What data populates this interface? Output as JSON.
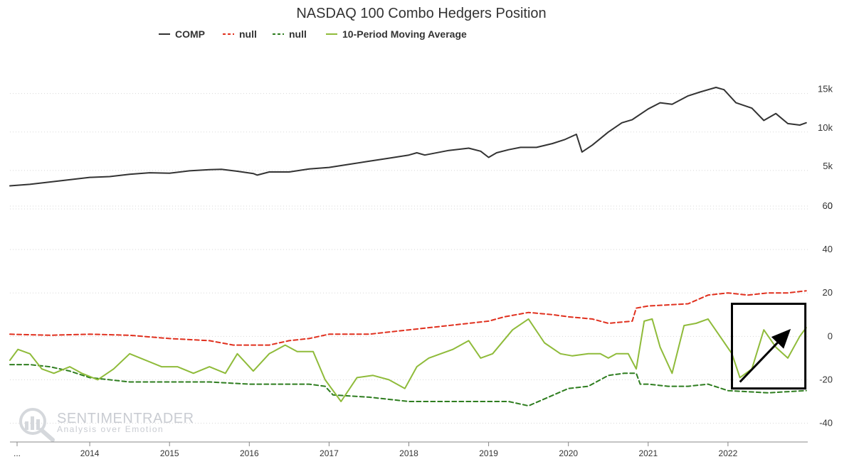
{
  "chart_data": {
    "type": "line",
    "title": "NASDAQ 100 Combo Hedgers Position",
    "legend": {
      "placement": "top-center",
      "items": [
        {
          "label": "COMP",
          "color": "#333333",
          "dash": "solid"
        },
        {
          "label": "null",
          "color": "#e0301e",
          "dash": "dashed"
        },
        {
          "label": "null",
          "color": "#2e7d1f",
          "dash": "dashed"
        },
        {
          "label": "10-Period Moving Average",
          "color": "#8fbb3a",
          "dash": "solid"
        }
      ]
    },
    "x_axis": {
      "min": 2013.0,
      "max": 2023.0,
      "first_label": "...",
      "tick_labels": [
        "2014",
        "2015",
        "2016",
        "2017",
        "2018",
        "2019",
        "2020",
        "2021",
        "2022"
      ],
      "tick_values": [
        2014,
        2015,
        2016,
        2017,
        2018,
        2019,
        2020,
        2021,
        2022
      ]
    },
    "upper_panel": {
      "ylim": [
        0,
        17000
      ],
      "tick_values": [
        0,
        5000,
        10000,
        15000
      ],
      "tick_labels": [
        "0",
        "5k",
        "10k",
        "15k"
      ],
      "series": [
        {
          "name": "COMP",
          "color": "#333333",
          "x": [
            2013.0,
            2013.25,
            2013.5,
            2013.75,
            2014.0,
            2014.25,
            2014.5,
            2014.75,
            2015.0,
            2015.25,
            2015.5,
            2015.65,
            2015.85,
            2016.05,
            2016.1,
            2016.25,
            2016.5,
            2016.75,
            2017.0,
            2017.25,
            2017.5,
            2017.75,
            2018.0,
            2018.1,
            2018.2,
            2018.5,
            2018.75,
            2018.9,
            2019.0,
            2019.1,
            2019.25,
            2019.4,
            2019.6,
            2019.8,
            2019.95,
            2020.1,
            2020.17,
            2020.3,
            2020.5,
            2020.67,
            2020.8,
            2021.0,
            2021.15,
            2021.3,
            2021.5,
            2021.65,
            2021.85,
            2021.95,
            2022.1,
            2022.3,
            2022.45,
            2022.6,
            2022.75,
            2022.9,
            2022.98
          ],
          "values": [
            3000,
            3200,
            3500,
            3800,
            4100,
            4200,
            4500,
            4700,
            4650,
            4950,
            5100,
            5150,
            4900,
            4600,
            4400,
            4800,
            4800,
            5200,
            5400,
            5800,
            6200,
            6600,
            7000,
            7300,
            7000,
            7600,
            7900,
            7500,
            6700,
            7300,
            7700,
            8000,
            8000,
            8500,
            9000,
            9700,
            7400,
            8300,
            10000,
            11200,
            11600,
            13000,
            13800,
            13600,
            14700,
            15200,
            15800,
            15500,
            13800,
            13100,
            11500,
            12400,
            11100,
            10900,
            11200
          ]
        }
      ]
    },
    "lower_panel": {
      "ylim": [
        -48,
        60
      ],
      "tick_values": [
        -40,
        -20,
        0,
        20,
        40,
        60
      ],
      "tick_labels": [
        "-40",
        "-20",
        "0",
        "20",
        "40",
        "60"
      ],
      "series": [
        {
          "name": "null",
          "color": "#e0301e",
          "dash": "dashed",
          "x": [
            2013.0,
            2013.5,
            2014.0,
            2014.5,
            2015.0,
            2015.5,
            2015.8,
            2016.0,
            2016.25,
            2016.5,
            2016.75,
            2017.0,
            2017.5,
            2018.0,
            2018.5,
            2019.0,
            2019.2,
            2019.5,
            2019.8,
            2020.0,
            2020.3,
            2020.5,
            2020.8,
            2020.85,
            2021.0,
            2021.5,
            2021.75,
            2022.0,
            2022.25,
            2022.5,
            2022.75,
            2022.98
          ],
          "values": [
            1,
            0.5,
            1,
            0.5,
            -1,
            -2,
            -4,
            -4,
            -4,
            -2,
            -1,
            1,
            1,
            3,
            5,
            7,
            9,
            11,
            10,
            9,
            8,
            6,
            7,
            13,
            14,
            15,
            19,
            20,
            19,
            20,
            20,
            21
          ]
        },
        {
          "name": "null",
          "color": "#2e7d1f",
          "dash": "dashed",
          "x": [
            2013.0,
            2013.25,
            2013.5,
            2013.75,
            2014.0,
            2014.5,
            2015.0,
            2015.5,
            2016.0,
            2016.5,
            2016.75,
            2016.95,
            2017.05,
            2017.5,
            2018.0,
            2018.5,
            2019.0,
            2019.25,
            2019.5,
            2019.75,
            2020.0,
            2020.25,
            2020.5,
            2020.7,
            2020.85,
            2020.9,
            2021.0,
            2021.25,
            2021.5,
            2021.75,
            2022.0,
            2022.5,
            2022.98
          ],
          "values": [
            -13,
            -13,
            -14,
            -16,
            -19,
            -21,
            -21,
            -21,
            -22,
            -22,
            -22,
            -23,
            -27,
            -28,
            -30,
            -30,
            -30,
            -30,
            -32,
            -28,
            -24,
            -23,
            -18,
            -17,
            -17,
            -22,
            -22,
            -23,
            -23,
            -22,
            -25,
            -26,
            -25
          ]
        },
        {
          "name": "10-Period Moving Average",
          "color": "#8fbb3a",
          "x": [
            2013.0,
            2013.1,
            2013.25,
            2013.4,
            2013.55,
            2013.75,
            2013.9,
            2014.1,
            2014.3,
            2014.5,
            2014.7,
            2014.9,
            2015.1,
            2015.3,
            2015.5,
            2015.7,
            2015.85,
            2016.05,
            2016.25,
            2016.45,
            2016.6,
            2016.8,
            2016.95,
            2017.15,
            2017.35,
            2017.55,
            2017.75,
            2017.95,
            2018.1,
            2018.25,
            2018.4,
            2018.55,
            2018.75,
            2018.9,
            2019.05,
            2019.3,
            2019.5,
            2019.7,
            2019.9,
            2020.05,
            2020.25,
            2020.4,
            2020.5,
            2020.6,
            2020.75,
            2020.85,
            2020.95,
            2021.05,
            2021.15,
            2021.3,
            2021.45,
            2021.6,
            2021.75,
            2021.9,
            2022.05,
            2022.15,
            2022.3,
            2022.45,
            2022.6,
            2022.75,
            2022.9,
            2022.98
          ],
          "values": [
            -11,
            -6,
            -8,
            -15,
            -17,
            -14,
            -17,
            -20,
            -15,
            -8,
            -11,
            -14,
            -14,
            -17,
            -14,
            -17,
            -8,
            -16,
            -8,
            -4,
            -7,
            -7,
            -20,
            -30,
            -19,
            -18,
            -20,
            -24,
            -14,
            -10,
            -8,
            -6,
            -2,
            -10,
            -8,
            3,
            8,
            -3,
            -8,
            -9,
            -8,
            -8,
            -10,
            -8,
            -8,
            -15,
            7,
            8,
            -5,
            -17,
            5,
            6,
            8,
            0,
            -8,
            -19,
            -15,
            3,
            -5,
            -10,
            0,
            4
          ]
        }
      ]
    },
    "annotations": [
      {
        "type": "box",
        "x_range": [
          2022.05,
          2022.97
        ],
        "y_range": [
          -24,
          15
        ],
        "panel": "lower"
      },
      {
        "type": "arrow",
        "from": [
          2022.15,
          -21
        ],
        "to": [
          2022.75,
          2
        ],
        "panel": "lower"
      }
    ],
    "grid": true
  },
  "watermark": {
    "brand": "SENTIMENTRADER",
    "tagline": "Analysis over Emotion"
  }
}
